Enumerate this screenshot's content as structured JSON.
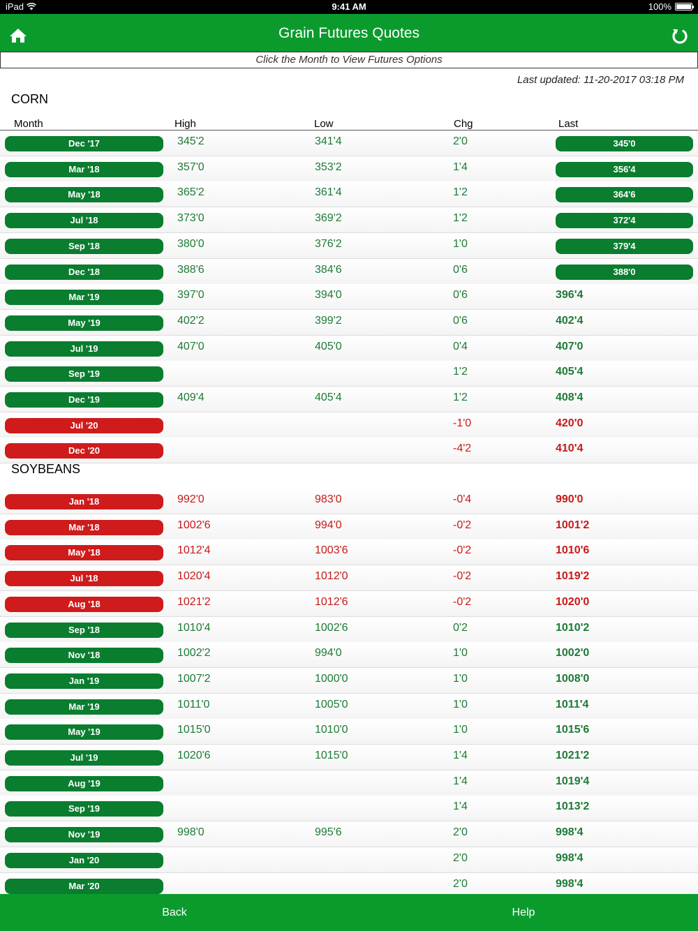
{
  "status_bar": {
    "device": "iPad",
    "time": "9:41 AM",
    "battery": "100%",
    "battery_level": 1.0
  },
  "header": {
    "title": "Grain Futures Quotes",
    "home_icon": "home-icon",
    "refresh_icon": "refresh-icon"
  },
  "hint": "Click the Month to View Futures Options",
  "last_updated": "Last updated: 11-20-2017 03:18 PM",
  "columns": {
    "month": "Month",
    "high": "High",
    "low": "Low",
    "chg": "Chg",
    "last": "Last"
  },
  "colors": {
    "brand_green": "#0b9b2d",
    "up_green": "#0a7d2f",
    "down_red": "#cf1b1b"
  },
  "sections": [
    {
      "name": "CORN",
      "rows": [
        {
          "month": "Dec '17",
          "high": "345'2",
          "low": "341'4",
          "chg": "2'0",
          "last": "345'0",
          "trend": "up",
          "last_pill": true
        },
        {
          "month": "Mar '18",
          "high": "357'0",
          "low": "353'2",
          "chg": "1'4",
          "last": "356'4",
          "trend": "up",
          "last_pill": true
        },
        {
          "month": "May '18",
          "high": "365'2",
          "low": "361'4",
          "chg": "1'2",
          "last": "364'6",
          "trend": "up",
          "last_pill": true
        },
        {
          "month": "Jul '18",
          "high": "373'0",
          "low": "369'2",
          "chg": "1'2",
          "last": "372'4",
          "trend": "up",
          "last_pill": true
        },
        {
          "month": "Sep '18",
          "high": "380'0",
          "low": "376'2",
          "chg": "1'0",
          "last": "379'4",
          "trend": "up",
          "last_pill": true
        },
        {
          "month": "Dec '18",
          "high": "388'6",
          "low": "384'6",
          "chg": "0'6",
          "last": "388'0",
          "trend": "up",
          "last_pill": true
        },
        {
          "month": "Mar '19",
          "high": "397'0",
          "low": "394'0",
          "chg": "0'6",
          "last": "396'4",
          "trend": "up",
          "last_pill": false
        },
        {
          "month": "May '19",
          "high": "402'2",
          "low": "399'2",
          "chg": "0'6",
          "last": "402'4",
          "trend": "up",
          "last_pill": false
        },
        {
          "month": "Jul '19",
          "high": "407'0",
          "low": "405'0",
          "chg": "0'4",
          "last": "407'0",
          "trend": "up",
          "last_pill": false
        },
        {
          "month": "Sep '19",
          "high": "",
          "low": "",
          "chg": "1'2",
          "last": "405'4",
          "trend": "up",
          "last_pill": false
        },
        {
          "month": "Dec '19",
          "high": "409'4",
          "low": "405'4",
          "chg": "1'2",
          "last": "408'4",
          "trend": "up",
          "last_pill": false
        },
        {
          "month": "Jul '20",
          "high": "",
          "low": "",
          "chg": "-1'0",
          "last": "420'0",
          "trend": "down",
          "last_pill": false
        },
        {
          "month": "Dec '20",
          "high": "",
          "low": "",
          "chg": "-4'2",
          "last": "410'4",
          "trend": "down",
          "last_pill": false
        }
      ]
    },
    {
      "name": "SOYBEANS",
      "rows": [
        {
          "month": "Jan '18",
          "high": "992'0",
          "low": "983'0",
          "chg": "-0'4",
          "last": "990'0",
          "trend": "down",
          "last_pill": false
        },
        {
          "month": "Mar '18",
          "high": "1002'6",
          "low": "994'0",
          "chg": "-0'2",
          "last": "1001'2",
          "trend": "down",
          "last_pill": false
        },
        {
          "month": "May '18",
          "high": "1012'4",
          "low": "1003'6",
          "chg": "-0'2",
          "last": "1010'6",
          "trend": "down",
          "last_pill": false
        },
        {
          "month": "Jul '18",
          "high": "1020'4",
          "low": "1012'0",
          "chg": "-0'2",
          "last": "1019'2",
          "trend": "down",
          "last_pill": false
        },
        {
          "month": "Aug '18",
          "high": "1021'2",
          "low": "1012'6",
          "chg": "-0'2",
          "last": "1020'0",
          "trend": "down",
          "last_pill": false
        },
        {
          "month": "Sep '18",
          "high": "1010'4",
          "low": "1002'6",
          "chg": "0'2",
          "last": "1010'2",
          "trend": "up",
          "last_pill": false
        },
        {
          "month": "Nov '18",
          "high": "1002'2",
          "low": "994'0",
          "chg": "1'0",
          "last": "1002'0",
          "trend": "up",
          "last_pill": false
        },
        {
          "month": "Jan '19",
          "high": "1007'2",
          "low": "1000'0",
          "chg": "1'0",
          "last": "1008'0",
          "trend": "up",
          "last_pill": false
        },
        {
          "month": "Mar '19",
          "high": "1011'0",
          "low": "1005'0",
          "chg": "1'0",
          "last": "1011'4",
          "trend": "up",
          "last_pill": false
        },
        {
          "month": "May '19",
          "high": "1015'0",
          "low": "1010'0",
          "chg": "1'0",
          "last": "1015'6",
          "trend": "up",
          "last_pill": false
        },
        {
          "month": "Jul '19",
          "high": "1020'6",
          "low": "1015'0",
          "chg": "1'4",
          "last": "1021'2",
          "trend": "up",
          "last_pill": false
        },
        {
          "month": "Aug '19",
          "high": "",
          "low": "",
          "chg": "1'4",
          "last": "1019'4",
          "trend": "up",
          "last_pill": false
        },
        {
          "month": "Sep '19",
          "high": "",
          "low": "",
          "chg": "1'4",
          "last": "1013'2",
          "trend": "up",
          "last_pill": false
        },
        {
          "month": "Nov '19",
          "high": "998'0",
          "low": "995'6",
          "chg": "2'0",
          "last": "998'4",
          "trend": "up",
          "last_pill": false
        },
        {
          "month": "Jan '20",
          "high": "",
          "low": "",
          "chg": "2'0",
          "last": "998'4",
          "trend": "up",
          "last_pill": false
        },
        {
          "month": "Mar '20",
          "high": "",
          "low": "",
          "chg": "2'0",
          "last": "998'4",
          "trend": "up",
          "last_pill": false
        }
      ]
    }
  ],
  "footer": {
    "back": "Back",
    "help": "Help"
  }
}
